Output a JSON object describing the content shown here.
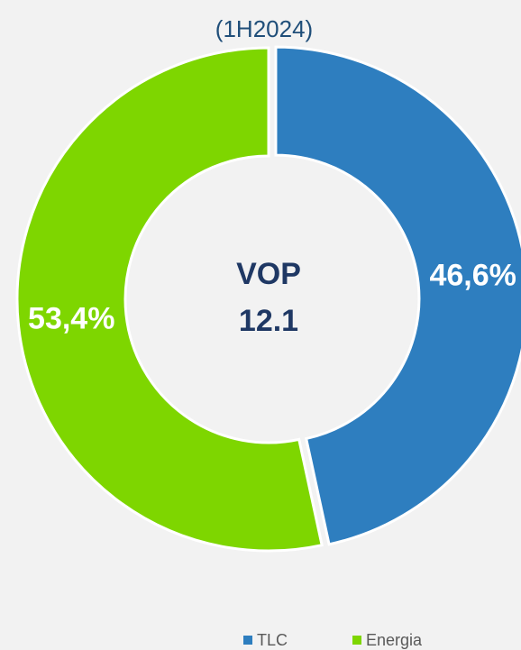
{
  "chart_data": {
    "type": "donut",
    "title": "(1H2024)",
    "annotations": [
      "VOP",
      "12.1"
    ],
    "categories": [
      "TLC",
      "Energia"
    ],
    "values": [
      46.6,
      53.4
    ],
    "value_labels": [
      "46,6%",
      "53,4%"
    ],
    "colors": [
      "#2e7ebf",
      "#7ed600"
    ],
    "legend": "bottom"
  }
}
